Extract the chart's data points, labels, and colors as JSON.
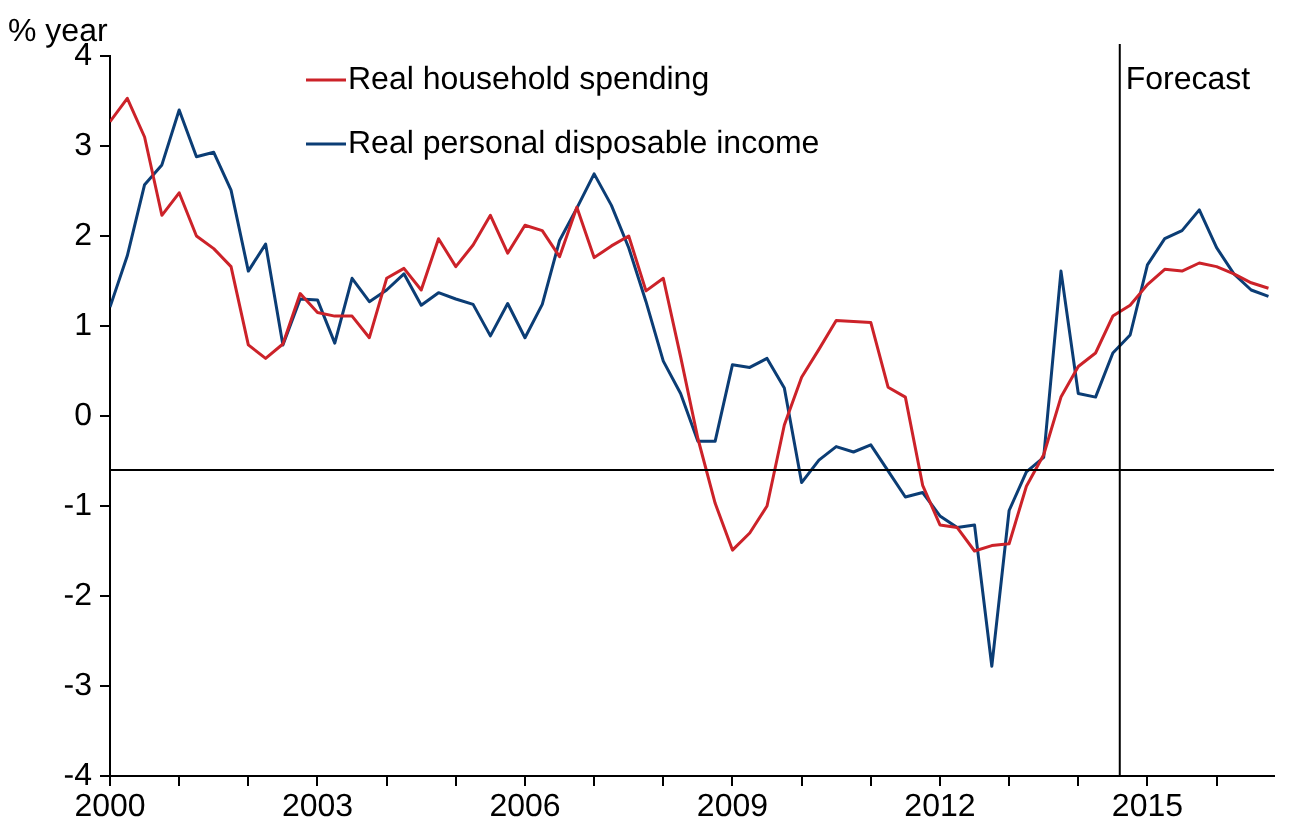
{
  "chart_data": {
    "type": "line",
    "ylabel": "% year",
    "x": [
      2000,
      2000.25,
      2000.5,
      2000.75,
      2001,
      2001.25,
      2001.5,
      2001.75,
      2002,
      2002.25,
      2002.5,
      2002.75,
      2003,
      2003.25,
      2003.5,
      2003.75,
      2004,
      2004.25,
      2004.5,
      2004.75,
      2005,
      2005.25,
      2005.5,
      2005.75,
      2006,
      2006.25,
      2006.5,
      2006.75,
      2007,
      2007.25,
      2007.5,
      2007.75,
      2008,
      2008.25,
      2008.5,
      2008.75,
      2009,
      2009.25,
      2009.5,
      2009.75,
      2010,
      2010.25,
      2010.5,
      2010.75,
      2011,
      2011.25,
      2011.5,
      2011.75,
      2012,
      2012.25,
      2012.5,
      2012.75,
      2013,
      2013.25,
      2013.5,
      2013.75,
      2014,
      2014.25,
      2014.5,
      2014.75,
      2015,
      2015.25,
      2015.5,
      2015.75,
      2016,
      2016.25,
      2016.5,
      2016.75
    ],
    "series": [
      {
        "name": "Real household spending",
        "color": "#cc2229",
        "values": [
          3.27,
          3.53,
          3.1,
          2.23,
          2.48,
          2.0,
          1.86,
          1.66,
          0.79,
          0.64,
          0.8,
          1.36,
          1.15,
          1.11,
          1.11,
          0.87,
          1.53,
          1.64,
          1.4,
          1.97,
          1.66,
          1.9,
          2.23,
          1.81,
          2.12,
          2.06,
          1.77,
          2.32,
          1.76,
          1.89,
          2.0,
          1.39,
          1.53,
          0.66,
          -0.25,
          -0.97,
          -1.49,
          -1.3,
          -1.0,
          -0.1,
          0.43,
          0.74,
          1.06,
          1.05,
          1.04,
          0.32,
          0.21,
          -0.77,
          -1.21,
          -1.24,
          -1.5,
          -1.44,
          -1.42,
          -0.78,
          -0.43,
          0.21,
          0.55,
          0.7,
          1.11,
          1.23,
          1.46,
          1.63,
          1.61,
          1.7,
          1.66,
          1.58,
          1.48,
          1.42
        ]
      },
      {
        "name": "Real personal disposable income",
        "color": "#0b3d75",
        "values": [
          1.21,
          1.78,
          2.57,
          2.79,
          3.4,
          2.88,
          2.93,
          2.51,
          1.61,
          1.91,
          0.79,
          1.3,
          1.29,
          0.81,
          1.53,
          1.27,
          1.4,
          1.58,
          1.23,
          1.37,
          1.3,
          1.24,
          0.89,
          1.25,
          0.87,
          1.24,
          1.95,
          2.31,
          2.69,
          2.34,
          1.87,
          1.27,
          0.61,
          0.25,
          -0.28,
          -0.28,
          0.57,
          0.54,
          0.64,
          0.31,
          -0.74,
          -0.49,
          -0.34,
          -0.4,
          -0.32,
          -0.61,
          -0.9,
          -0.85,
          -1.11,
          -1.24,
          -1.21,
          -2.78,
          -1.05,
          -0.62,
          -0.46,
          1.61,
          0.25,
          0.21,
          0.7,
          0.9,
          1.68,
          1.97,
          2.06,
          2.29,
          1.87,
          1.58,
          1.4,
          1.33
        ]
      }
    ],
    "xlim": [
      2000,
      2016.83
    ],
    "xticks": [
      2000,
      {
        "value": 2001,
        "label": null
      },
      {
        "value": 2002,
        "label": null
      },
      2003,
      {
        "value": 2004,
        "label": null
      },
      {
        "value": 2005,
        "label": null
      },
      2006,
      {
        "value": 2007,
        "label": null
      },
      {
        "value": 2008,
        "label": null
      },
      2009,
      {
        "value": 2010,
        "label": null
      },
      {
        "value": 2011,
        "label": null
      },
      2012,
      {
        "value": 2013,
        "label": null
      },
      {
        "value": 2014,
        "label": null
      },
      2015,
      {
        "value": 2016,
        "label": null
      }
    ],
    "ylim": [
      -4,
      4
    ],
    "yticks": [
      -4,
      -3,
      -2,
      -1,
      0,
      1,
      2,
      3,
      4
    ],
    "ref_lines": [
      {
        "axis": "y",
        "value": -0.6,
        "label": null,
        "color": "#000000"
      },
      {
        "axis": "x",
        "value": 2014.6,
        "label": "Forecast",
        "color": "#000000"
      }
    ],
    "grid": false,
    "legend": "top",
    "marker": "none",
    "line_style": "solid"
  }
}
